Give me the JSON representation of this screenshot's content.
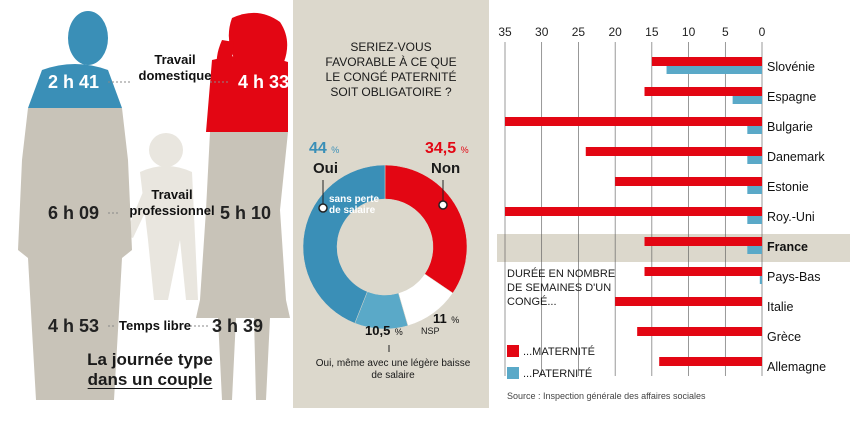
{
  "left": {
    "label_domestic": "Travail\ndomestique",
    "label_professional": "Travail\nprofessionnel",
    "label_free": "Temps libre",
    "man": {
      "domestic": "2 h 41",
      "professional": "6 h 09",
      "free": "4 h 53"
    },
    "woman": {
      "domestic": "4 h 33",
      "professional": "5 h 10",
      "free": "3 h 39"
    },
    "title_line1": "La journée type",
    "title_line2": "dans un couple",
    "colors": {
      "man_top": "#3a8fb7",
      "woman_top": "#e30613",
      "body": "#c8c3b8"
    }
  },
  "poll": {
    "question": "SERIEZ-VOUS FAVORABLE À CE QUE LE CONGÉ PATERNITÉ SOIT OBLIGATOIRE ?",
    "oui_value": "44",
    "oui_unit": "%",
    "oui_label": "Oui",
    "non_value": "34,5",
    "non_unit": "%",
    "non_label": "Non",
    "sans_perte": "sans perte de salaire",
    "nsp_value": "11",
    "nsp_unit": "%",
    "nsp_label": "NSP",
    "baisse_value": "10,5",
    "baisse_unit": "%",
    "baisse_label": "Oui, même avec une légère baisse de salaire"
  },
  "chart_data": {
    "type": "bar",
    "orientation": "horizontal",
    "x_ticks": [
      "35",
      "30",
      "25",
      "20",
      "15",
      "10",
      "5",
      "0"
    ],
    "xlim": [
      35,
      0
    ],
    "categories": [
      "Slovénie",
      "Espagne",
      "Bulgarie",
      "Danemark",
      "Estonie",
      "Roy.-Uni",
      "France",
      "Pays-Bas",
      "Italie",
      "Grèce",
      "Allemagne"
    ],
    "highlight": "France",
    "series": [
      {
        "name": "...MATERNITÉ",
        "color": "#e30613",
        "values": [
          15,
          16,
          35,
          24,
          20,
          35,
          16,
          16,
          20,
          17,
          14
        ]
      },
      {
        "name": "...PATERNITÉ",
        "color": "#5aa9c8",
        "values": [
          13,
          4,
          2,
          2,
          2,
          2,
          2,
          0.3,
          0,
          0,
          0
        ]
      }
    ],
    "legend_title": "DURÉE EN NOMBRE DE SEMAINES D'UN CONGÉ...",
    "source": "Source : Inspection générale des affaires sociales"
  }
}
